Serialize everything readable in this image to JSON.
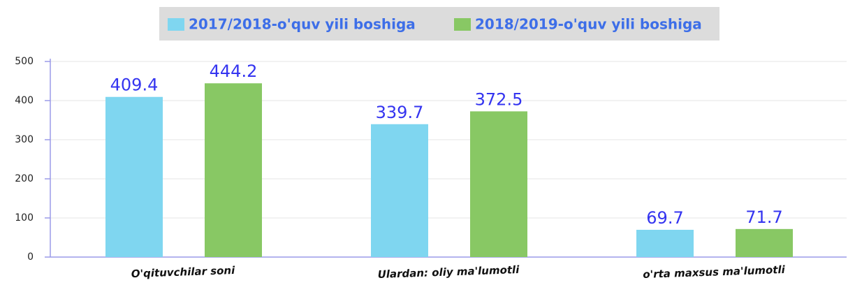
{
  "chart_data": {
    "type": "bar",
    "categories": [
      "O'qituvchilar soni",
      "Ulardan: oliy ma'lumotli",
      "o'rta maxsus ma'lumotli"
    ],
    "series": [
      {
        "name": "2017/2018-o'quv yili boshiga",
        "color": "#7fd6f0",
        "values": [
          409.4,
          339.7,
          69.7
        ]
      },
      {
        "name": "2018/2019-o'quv yili boshiga",
        "color": "#88c864",
        "values": [
          444.2,
          372.5,
          71.7
        ]
      }
    ],
    "ylim": [
      0,
      500
    ],
    "yticks": [
      0,
      100,
      200,
      300,
      400,
      500
    ],
    "grid": true,
    "legend": "top"
  }
}
